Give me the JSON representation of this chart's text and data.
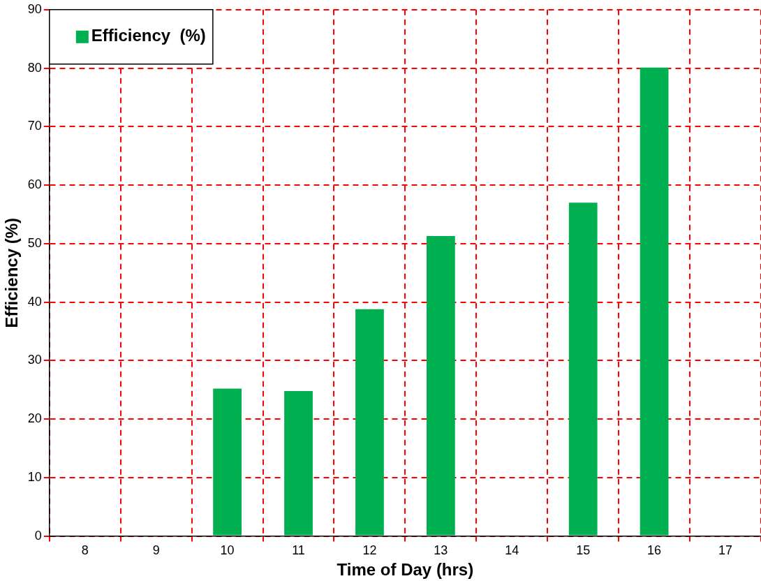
{
  "chart_data": {
    "type": "bar",
    "xlabel": "Time of Day (hrs)",
    "ylabel": "Efficiency (%)",
    "categories": [
      "8",
      "9",
      "10",
      "11",
      "12",
      "13",
      "14",
      "15",
      "16",
      "17"
    ],
    "series": [
      {
        "name": "Efficiency  (%)",
        "color": "#00b050",
        "values": [
          null,
          null,
          25.2,
          24.8,
          38.8,
          51.3,
          null,
          57.0,
          80.1,
          null
        ]
      }
    ],
    "ylim": [
      0,
      90
    ],
    "yticks": [
      0,
      10,
      20,
      30,
      40,
      50,
      60,
      70,
      80,
      90
    ],
    "grid": true,
    "legend": "top left"
  }
}
